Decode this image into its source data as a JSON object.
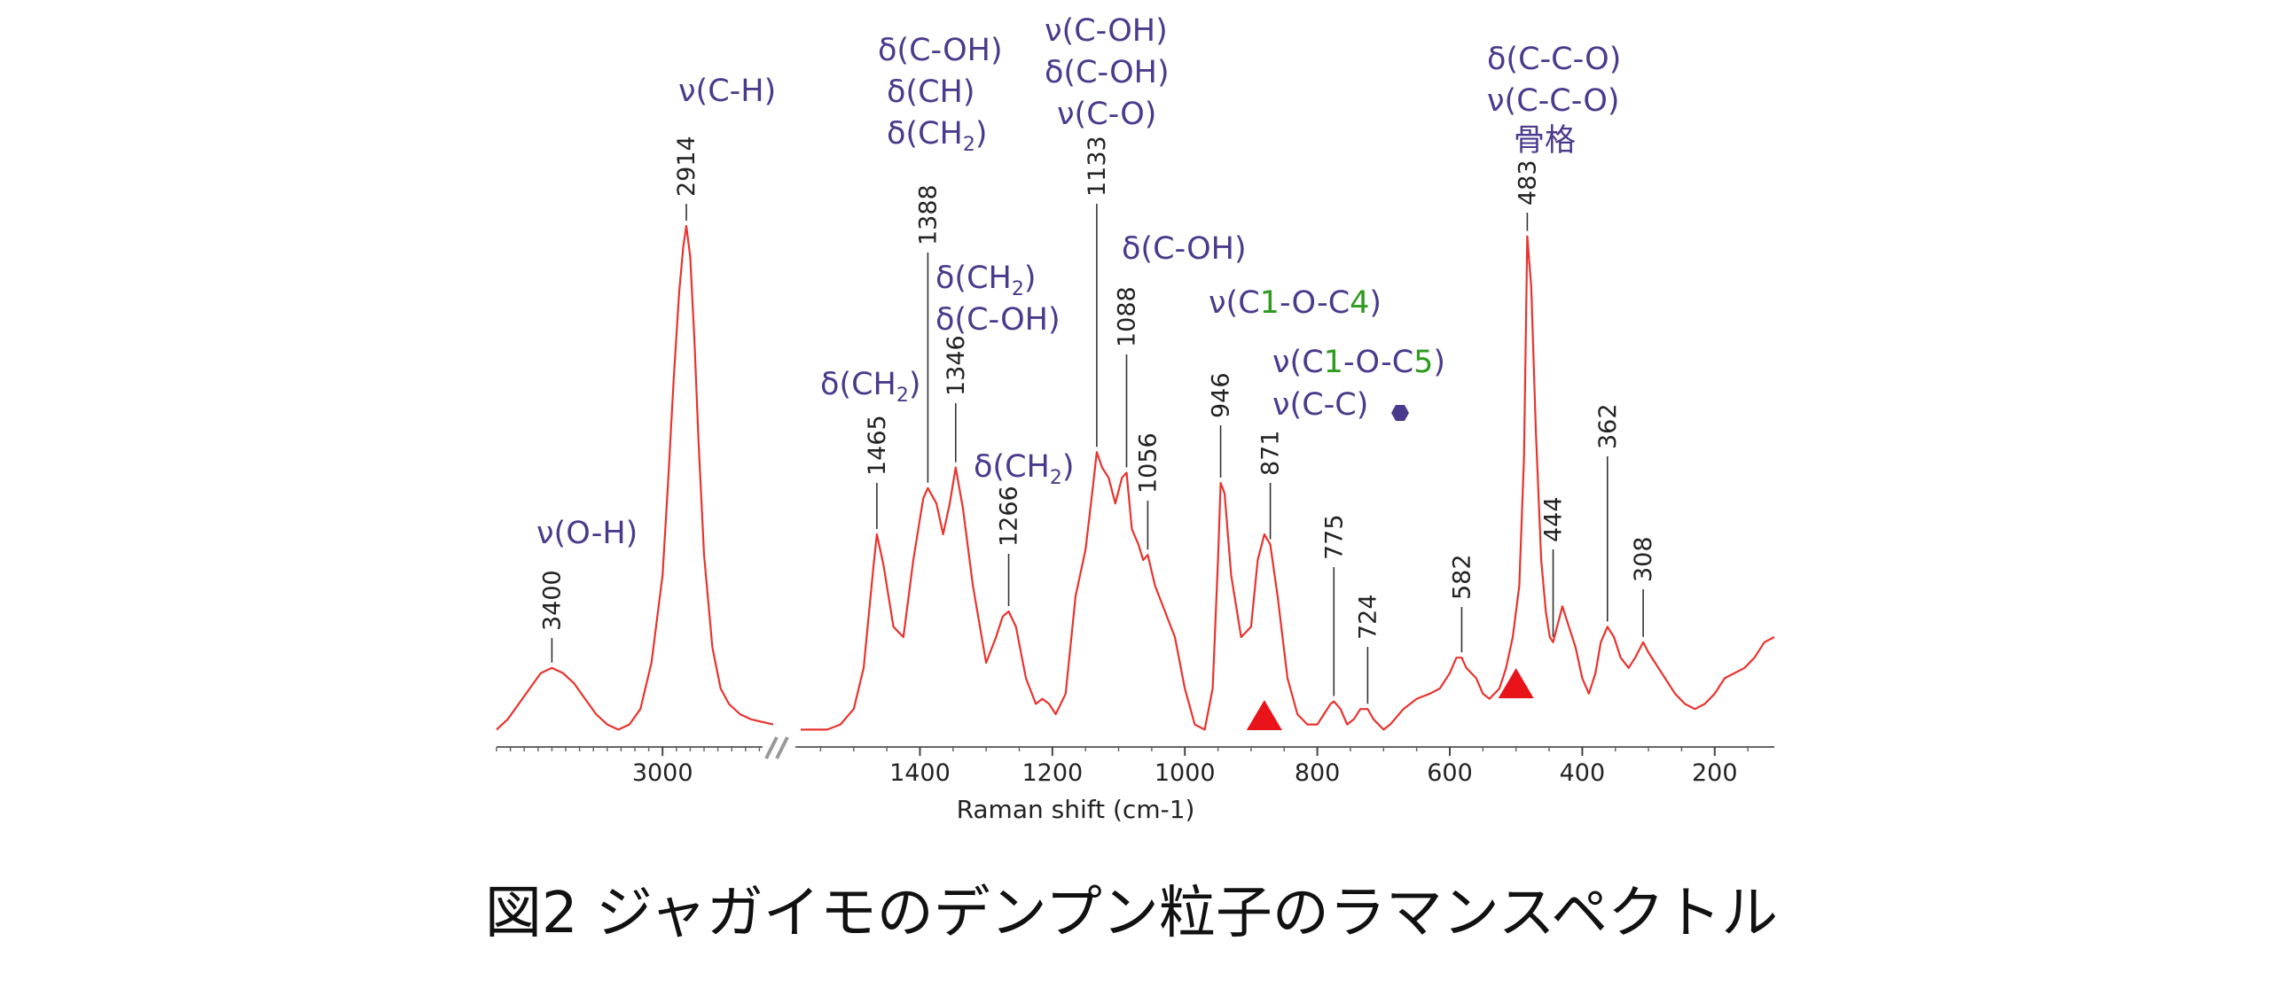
{
  "chart_data": {
    "type": "line",
    "title": "図2  ジャガイモのデンプン粒子のラマンスペクトル",
    "xlabel": "Raman shift (cm-1)",
    "ylabel": "",
    "x_reversed": true,
    "axis_break": [
      2560,
      1600
    ],
    "x_ticks": [
      3000,
      1400,
      1200,
      1000,
      800,
      600,
      400,
      200
    ],
    "colors": {
      "spectrum": "#e8332e",
      "assign": "#4b3a8c",
      "green": "#2e9a1f",
      "marker": "#e8141a"
    },
    "series": [
      {
        "segment": "high",
        "x": [
          3600,
          3560,
          3520,
          3480,
          3440,
          3400,
          3360,
          3320,
          3280,
          3240,
          3200,
          3160,
          3120,
          3080,
          3040,
          3000,
          2980,
          2960,
          2940,
          2925,
          2914,
          2900,
          2885,
          2870,
          2850,
          2820,
          2790,
          2760,
          2720,
          2680,
          2640,
          2600
        ],
        "y": [
          0.02,
          0.04,
          0.07,
          0.1,
          0.13,
          0.14,
          0.13,
          0.11,
          0.08,
          0.05,
          0.03,
          0.02,
          0.03,
          0.06,
          0.15,
          0.32,
          0.5,
          0.7,
          0.87,
          0.96,
          1.0,
          0.94,
          0.78,
          0.58,
          0.36,
          0.18,
          0.1,
          0.07,
          0.05,
          0.04,
          0.035,
          0.03
        ]
      },
      {
        "segment": "low",
        "x": [
          1580,
          1540,
          1520,
          1500,
          1485,
          1470,
          1465,
          1455,
          1440,
          1425,
          1410,
          1395,
          1388,
          1375,
          1365,
          1355,
          1346,
          1335,
          1320,
          1300,
          1285,
          1275,
          1266,
          1255,
          1240,
          1225,
          1215,
          1205,
          1195,
          1180,
          1165,
          1150,
          1140,
          1133,
          1125,
          1115,
          1105,
          1095,
          1088,
          1080,
          1070,
          1063,
          1056,
          1045,
          1030,
          1015,
          1000,
          985,
          970,
          958,
          950,
          946,
          940,
          930,
          915,
          900,
          890,
          880,
          871,
          860,
          845,
          830,
          815,
          800,
          790,
          780,
          775,
          765,
          755,
          745,
          735,
          724,
          715,
          700,
          690,
          670,
          650,
          630,
          615,
          600,
          590,
          582,
          575,
          560,
          550,
          540,
          525,
          515,
          505,
          495,
          488,
          483,
          477,
          470,
          462,
          455,
          449,
          444,
          438,
          430,
          420,
          410,
          400,
          390,
          380,
          372,
          362,
          352,
          342,
          330,
          320,
          312,
          308,
          300,
          290,
          275,
          260,
          245,
          230,
          215,
          200,
          185,
          170,
          155,
          140,
          125,
          110
        ],
        "y": [
          0.02,
          0.02,
          0.03,
          0.06,
          0.14,
          0.34,
          0.4,
          0.34,
          0.22,
          0.2,
          0.35,
          0.47,
          0.49,
          0.46,
          0.4,
          0.46,
          0.53,
          0.45,
          0.3,
          0.15,
          0.2,
          0.24,
          0.25,
          0.22,
          0.12,
          0.07,
          0.08,
          0.07,
          0.05,
          0.09,
          0.28,
          0.37,
          0.48,
          0.56,
          0.53,
          0.51,
          0.46,
          0.51,
          0.52,
          0.41,
          0.38,
          0.35,
          0.36,
          0.3,
          0.25,
          0.2,
          0.1,
          0.03,
          0.02,
          0.1,
          0.35,
          0.5,
          0.48,
          0.32,
          0.2,
          0.22,
          0.35,
          0.4,
          0.38,
          0.28,
          0.12,
          0.05,
          0.03,
          0.03,
          0.05,
          0.07,
          0.075,
          0.06,
          0.03,
          0.04,
          0.06,
          0.06,
          0.04,
          0.02,
          0.03,
          0.06,
          0.08,
          0.09,
          0.1,
          0.13,
          0.16,
          0.16,
          0.14,
          0.12,
          0.09,
          0.08,
          0.1,
          0.14,
          0.2,
          0.3,
          0.55,
          0.98,
          0.88,
          0.6,
          0.35,
          0.25,
          0.2,
          0.19,
          0.22,
          0.26,
          0.22,
          0.18,
          0.12,
          0.09,
          0.13,
          0.19,
          0.22,
          0.2,
          0.16,
          0.14,
          0.16,
          0.18,
          0.19,
          0.17,
          0.15,
          0.12,
          0.09,
          0.07,
          0.06,
          0.07,
          0.09,
          0.12,
          0.13,
          0.14,
          0.16,
          0.19,
          0.2
        ]
      }
    ],
    "peaks": [
      {
        "x": 3400,
        "label": "3400",
        "segment": "high"
      },
      {
        "x": 2914,
        "label": "2914",
        "segment": "high"
      },
      {
        "x": 1465,
        "label": "1465",
        "segment": "low"
      },
      {
        "x": 1388,
        "label": "1388",
        "segment": "low"
      },
      {
        "x": 1346,
        "label": "1346",
        "segment": "low"
      },
      {
        "x": 1266,
        "label": "1266",
        "segment": "low"
      },
      {
        "x": 1133,
        "label": "1133",
        "segment": "low"
      },
      {
        "x": 1088,
        "label": "1088",
        "segment": "low"
      },
      {
        "x": 1056,
        "label": "1056",
        "segment": "low"
      },
      {
        "x": 946,
        "label": "946",
        "segment": "low"
      },
      {
        "x": 871,
        "label": "871",
        "segment": "low"
      },
      {
        "x": 775,
        "label": "775",
        "segment": "low"
      },
      {
        "x": 724,
        "label": "724",
        "segment": "low"
      },
      {
        "x": 582,
        "label": "582",
        "segment": "low"
      },
      {
        "x": 483,
        "label": "483",
        "segment": "low"
      },
      {
        "x": 444,
        "label": "444",
        "segment": "low"
      },
      {
        "x": 362,
        "label": "362",
        "segment": "low"
      },
      {
        "x": 308,
        "label": "308",
        "segment": "low"
      }
    ],
    "markers": [
      {
        "type": "triangle",
        "x": 880
      },
      {
        "type": "triangle",
        "x": 500
      }
    ],
    "annotations": [
      {
        "id": "oh",
        "lines": [
          "ν(O-H)"
        ]
      },
      {
        "id": "ch",
        "lines": [
          "ν(C-H)"
        ]
      },
      {
        "id": "ch2-1465",
        "lines": [
          "δ(CH2)"
        ]
      },
      {
        "id": "group-1388",
        "lines": [
          "δ(C-OH)",
          "δ(CH)",
          "δ(CH2)"
        ]
      },
      {
        "id": "group-1346",
        "lines": [
          "δ(CH2)",
          "δ(C-OH)"
        ]
      },
      {
        "id": "ch2-1266",
        "lines": [
          "δ(CH2)"
        ]
      },
      {
        "id": "group-1133",
        "lines": [
          "ν(C-OH)",
          "δ(C-OH)",
          "ν(C-O)"
        ]
      },
      {
        "id": "coh-1088",
        "lines": [
          "δ(C-OH)"
        ]
      },
      {
        "id": "c1oc4",
        "lines": [
          "ν(C1-O-C4)"
        ]
      },
      {
        "id": "c1oc5",
        "lines": [
          "ν(C1-O-C5)",
          "ν(C-C)"
        ]
      },
      {
        "id": "group-483",
        "lines": [
          "δ(C-C-O)",
          "ν(C-C-O)",
          "骨格"
        ]
      }
    ]
  }
}
